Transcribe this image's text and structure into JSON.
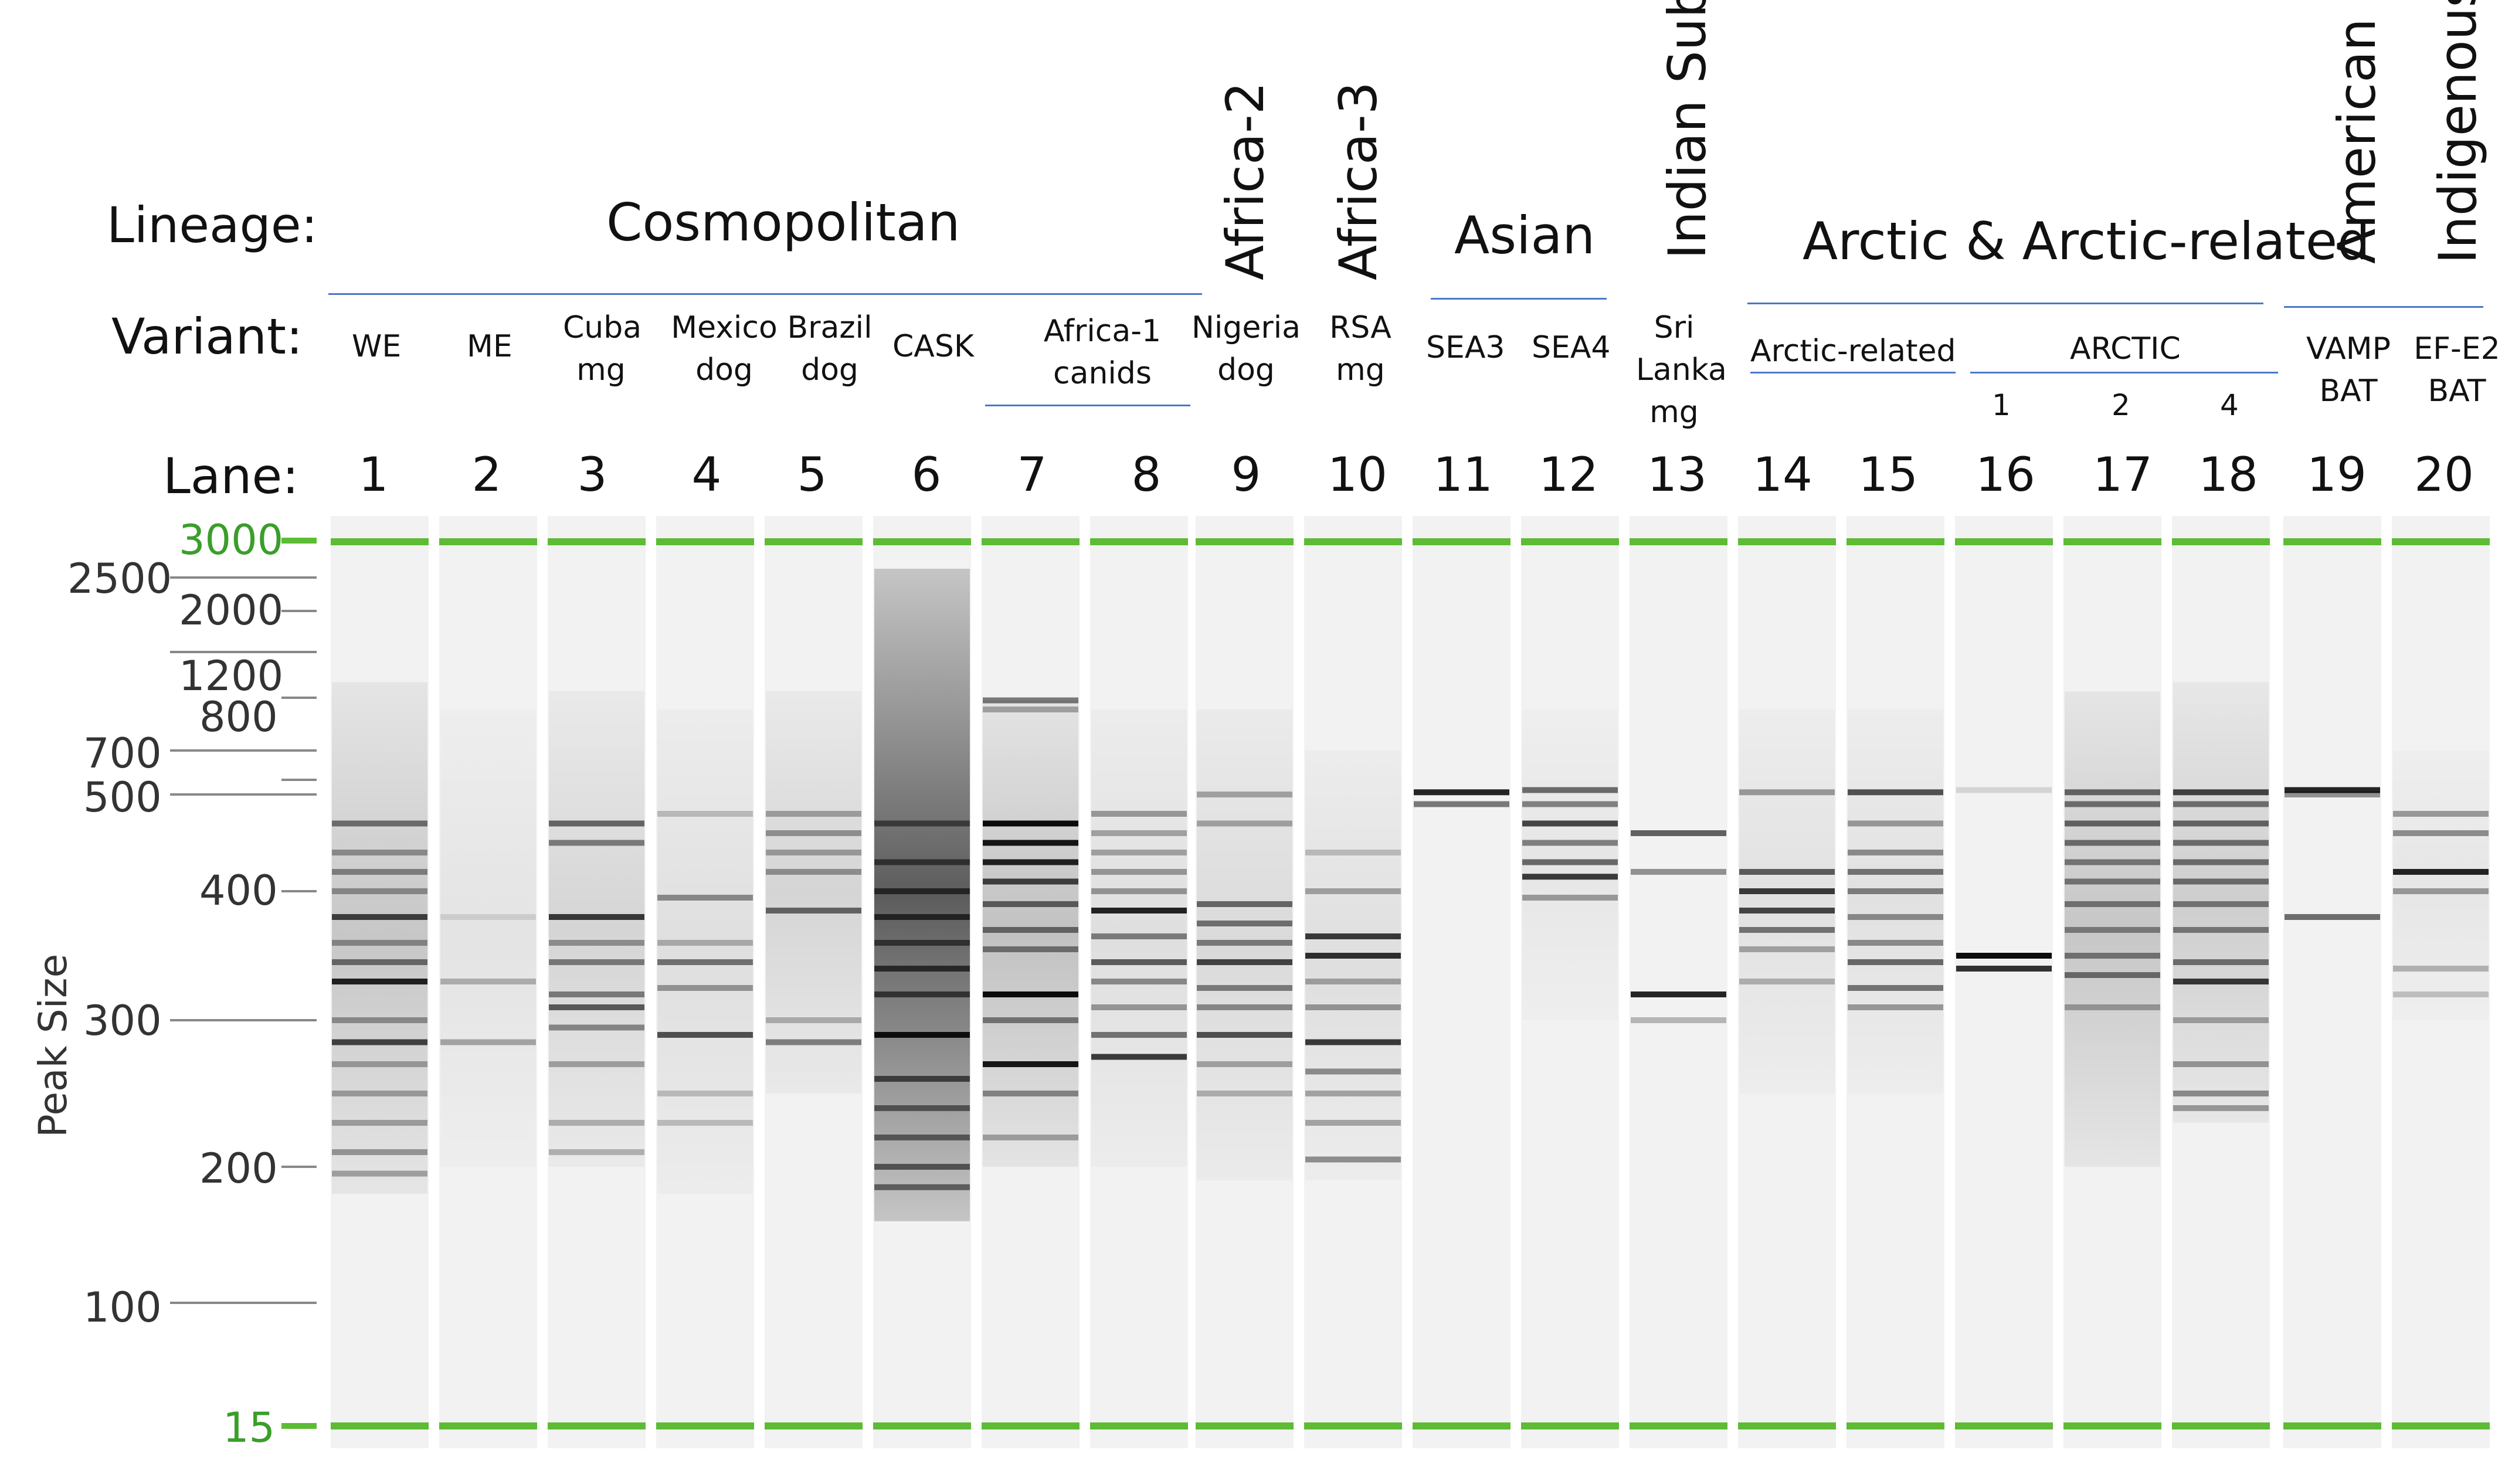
{
  "headers": {
    "lineage": "Lineage:",
    "variant": "Variant:",
    "lane": "Lane:"
  },
  "lineages": {
    "cosmopolitan": "Cosmopolitan",
    "africa2": "Africa-2",
    "africa3": "Africa-3",
    "asian": "Asian",
    "indian": "Indian Sub.",
    "arctic": "Arctic & Arctic-related",
    "american": "American",
    "indigenous": "Indigenous"
  },
  "variants": {
    "we": "WE",
    "me": "ME",
    "cuba1": "Cuba",
    "cuba2": "mg",
    "mexico1": "Mexico",
    "mexico2": "dog",
    "brazil1": "Brazil",
    "brazil2": "dog",
    "cask": "CASK",
    "africa1_1": "Africa-1",
    "africa1_2": "canids",
    "nigeria1": "Nigeria",
    "nigeria2": "dog",
    "rsa1": "RSA",
    "rsa2": "mg",
    "sea3": "SEA3",
    "sea4": "SEA4",
    "sri1": "Sri",
    "sri2": "Lanka",
    "sri3": "mg",
    "arcrel": "Arctic-related",
    "arctic": "ARCTIC",
    "arc1": "1",
    "arc2": "2",
    "arc4": "4",
    "vamp1": "VAMP",
    "vamp2": "BAT",
    "efe2_1": "EF-E2",
    "efe2_2": "BAT"
  },
  "lanes": [
    "1",
    "2",
    "3",
    "4",
    "5",
    "6",
    "7",
    "8",
    "9",
    "10",
    "11",
    "12",
    "13",
    "14",
    "15",
    "16",
    "17",
    "18",
    "19",
    "20"
  ],
  "axis": {
    "ylabel": "Peak Size",
    "marker_top": "3000",
    "marker_bottom": "15",
    "sizes": {
      "s2500": "2500",
      "s2000": "2000",
      "s1200": "1200",
      "s800": "800",
      "s700": "700",
      "s500": "500",
      "s400": "400",
      "s300": "300",
      "s200": "200",
      "s100": "100"
    }
  },
  "colors": {
    "marker": "#5dbb34",
    "rule": "#4a78c8",
    "band": "#000000",
    "lane_bg": "#f2f2f2"
  },
  "gel": {
    "band_sizes_note": "bands listed as [size_bp, intensity 0-1]",
    "lanes": [
      {
        "lane": "1",
        "smear": [
          [
            180,
            1100,
            0.18
          ]
        ],
        "bands": [
          [
            470,
            0.5
          ],
          [
            440,
            0.35
          ],
          [
            420,
            0.4
          ],
          [
            400,
            0.35
          ],
          [
            380,
            0.7
          ],
          [
            360,
            0.35
          ],
          [
            345,
            0.5
          ],
          [
            330,
            0.85
          ],
          [
            300,
            0.35
          ],
          [
            285,
            0.7
          ],
          [
            270,
            0.3
          ],
          [
            250,
            0.3
          ],
          [
            230,
            0.3
          ],
          [
            210,
            0.35
          ],
          [
            195,
            0.3
          ]
        ]
      },
      {
        "lane": "2",
        "smear": [
          [
            200,
            800,
            0.06
          ]
        ],
        "bands": [
          [
            330,
            0.25
          ],
          [
            285,
            0.3
          ],
          [
            380,
            0.1
          ]
        ]
      },
      {
        "lane": "3",
        "smear": [
          [
            200,
            1000,
            0.12
          ]
        ],
        "bands": [
          [
            470,
            0.55
          ],
          [
            450,
            0.45
          ],
          [
            380,
            0.75
          ],
          [
            360,
            0.35
          ],
          [
            345,
            0.45
          ],
          [
            320,
            0.45
          ],
          [
            310,
            0.6
          ],
          [
            295,
            0.4
          ],
          [
            270,
            0.3
          ],
          [
            230,
            0.25
          ],
          [
            210,
            0.25
          ]
        ]
      },
      {
        "lane": "4",
        "smear": [
          [
            180,
            800,
            0.08
          ]
        ],
        "bands": [
          [
            480,
            0.2
          ],
          [
            395,
            0.4
          ],
          [
            360,
            0.25
          ],
          [
            345,
            0.5
          ],
          [
            325,
            0.35
          ],
          [
            290,
            0.65
          ],
          [
            250,
            0.2
          ],
          [
            230,
            0.2
          ]
        ]
      },
      {
        "lane": "5",
        "smear": [
          [
            250,
            1000,
            0.12
          ]
        ],
        "bands": [
          [
            480,
            0.3
          ],
          [
            460,
            0.35
          ],
          [
            440,
            0.3
          ],
          [
            420,
            0.35
          ],
          [
            385,
            0.55
          ],
          [
            300,
            0.25
          ],
          [
            285,
            0.45
          ]
        ]
      },
      {
        "lane": "6",
        "smear": [
          [
            160,
            2600,
            0.62
          ]
        ],
        "bands": [
          [
            470,
            0.5
          ],
          [
            430,
            0.55
          ],
          [
            400,
            0.6
          ],
          [
            380,
            0.65
          ],
          [
            360,
            0.55
          ],
          [
            340,
            0.65
          ],
          [
            320,
            0.6
          ],
          [
            290,
            0.9
          ],
          [
            260,
            0.6
          ],
          [
            240,
            0.5
          ],
          [
            220,
            0.5
          ],
          [
            200,
            0.55
          ],
          [
            185,
            0.5
          ]
        ]
      },
      {
        "lane": "7",
        "smear": [
          [
            200,
            900,
            0.2
          ]
        ],
        "bands": [
          [
            900,
            0.5
          ],
          [
            800,
            0.3
          ],
          [
            470,
            0.95
          ],
          [
            450,
            0.9
          ],
          [
            430,
            0.85
          ],
          [
            410,
            0.7
          ],
          [
            390,
            0.55
          ],
          [
            370,
            0.5
          ],
          [
            355,
            0.45
          ],
          [
            320,
            0.95
          ],
          [
            300,
            0.45
          ],
          [
            270,
            0.9
          ],
          [
            250,
            0.4
          ],
          [
            220,
            0.3
          ]
        ]
      },
      {
        "lane": "8",
        "smear": [
          [
            200,
            800,
            0.08
          ]
        ],
        "bands": [
          [
            480,
            0.35
          ],
          [
            460,
            0.3
          ],
          [
            440,
            0.3
          ],
          [
            420,
            0.35
          ],
          [
            400,
            0.35
          ],
          [
            385,
            0.85
          ],
          [
            365,
            0.45
          ],
          [
            345,
            0.6
          ],
          [
            330,
            0.4
          ],
          [
            310,
            0.35
          ],
          [
            290,
            0.5
          ],
          [
            275,
            0.75
          ]
        ]
      },
      {
        "lane": "9",
        "smear": [
          [
            190,
            800,
            0.1
          ]
        ],
        "bands": [
          [
            500,
            0.3
          ],
          [
            470,
            0.3
          ],
          [
            390,
            0.55
          ],
          [
            375,
            0.5
          ],
          [
            360,
            0.45
          ],
          [
            345,
            0.7
          ],
          [
            325,
            0.45
          ],
          [
            310,
            0.4
          ],
          [
            290,
            0.65
          ],
          [
            270,
            0.3
          ],
          [
            250,
            0.25
          ]
        ]
      },
      {
        "lane": "10",
        "smear": [
          [
            190,
            700,
            0.08
          ]
        ],
        "bands": [
          [
            440,
            0.2
          ],
          [
            400,
            0.3
          ],
          [
            365,
            0.75
          ],
          [
            350,
            0.8
          ],
          [
            330,
            0.3
          ],
          [
            310,
            0.35
          ],
          [
            285,
            0.75
          ],
          [
            265,
            0.4
          ],
          [
            250,
            0.3
          ],
          [
            230,
            0.3
          ],
          [
            205,
            0.4
          ]
        ]
      },
      {
        "lane": "11",
        "smear": [],
        "bands": [
          [
            510,
            0.85
          ],
          [
            490,
            0.5
          ]
        ]
      },
      {
        "lane": "12",
        "smear": [
          [
            300,
            800,
            0.05
          ]
        ],
        "bands": [
          [
            520,
            0.55
          ],
          [
            490,
            0.45
          ],
          [
            470,
            0.7
          ],
          [
            450,
            0.45
          ],
          [
            430,
            0.55
          ],
          [
            415,
            0.75
          ],
          [
            395,
            0.35
          ]
        ]
      },
      {
        "lane": "13",
        "smear": [],
        "bands": [
          [
            460,
            0.6
          ],
          [
            420,
            0.4
          ],
          [
            320,
            0.85
          ],
          [
            300,
            0.25
          ]
        ]
      },
      {
        "lane": "14",
        "smear": [
          [
            250,
            800,
            0.07
          ]
        ],
        "bands": [
          [
            510,
            0.35
          ],
          [
            420,
            0.6
          ],
          [
            400,
            0.75
          ],
          [
            385,
            0.7
          ],
          [
            370,
            0.5
          ],
          [
            355,
            0.3
          ],
          [
            330,
            0.25
          ]
        ]
      },
      {
        "lane": "15",
        "smear": [
          [
            250,
            800,
            0.07
          ]
        ],
        "bands": [
          [
            510,
            0.65
          ],
          [
            470,
            0.35
          ],
          [
            440,
            0.4
          ],
          [
            420,
            0.5
          ],
          [
            400,
            0.45
          ],
          [
            380,
            0.4
          ],
          [
            360,
            0.4
          ],
          [
            345,
            0.55
          ],
          [
            325,
            0.5
          ],
          [
            310,
            0.35
          ]
        ]
      },
      {
        "lane": "16",
        "smear": [],
        "bands": [
          [
            520,
            0.12
          ],
          [
            350,
            0.95
          ],
          [
            340,
            0.8
          ]
        ]
      },
      {
        "lane": "17",
        "smear": [
          [
            200,
            1000,
            0.18
          ]
        ],
        "bands": [
          [
            510,
            0.55
          ],
          [
            490,
            0.5
          ],
          [
            470,
            0.55
          ],
          [
            450,
            0.5
          ],
          [
            430,
            0.45
          ],
          [
            410,
            0.45
          ],
          [
            390,
            0.45
          ],
          [
            370,
            0.4
          ],
          [
            350,
            0.45
          ],
          [
            335,
            0.5
          ],
          [
            310,
            0.3
          ]
        ]
      },
      {
        "lane": "18",
        "smear": [
          [
            230,
            1100,
            0.15
          ]
        ],
        "bands": [
          [
            510,
            0.7
          ],
          [
            490,
            0.5
          ],
          [
            470,
            0.55
          ],
          [
            450,
            0.5
          ],
          [
            430,
            0.5
          ],
          [
            410,
            0.5
          ],
          [
            390,
            0.45
          ],
          [
            370,
            0.45
          ],
          [
            345,
            0.5
          ],
          [
            330,
            0.75
          ],
          [
            300,
            0.3
          ],
          [
            270,
            0.35
          ],
          [
            250,
            0.4
          ],
          [
            240,
            0.35
          ]
        ]
      },
      {
        "lane": "19",
        "smear": [],
        "bands": [
          [
            520,
            0.85
          ],
          [
            500,
            0.4
          ],
          [
            380,
            0.55
          ]
        ]
      },
      {
        "lane": "20",
        "smear": [
          [
            300,
            700,
            0.05
          ]
        ],
        "bands": [
          [
            480,
            0.35
          ],
          [
            460,
            0.4
          ],
          [
            420,
            0.85
          ],
          [
            400,
            0.35
          ],
          [
            340,
            0.25
          ],
          [
            320,
            0.2
          ]
        ]
      }
    ]
  }
}
